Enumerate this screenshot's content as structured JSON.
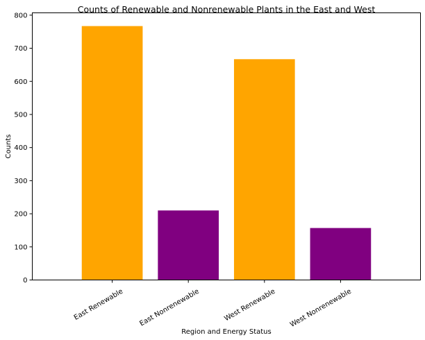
{
  "chart_data": {
    "type": "bar",
    "title": "Counts of Renewable and Nonrenewable Plants in the East and West",
    "xlabel": "Region and Energy Status",
    "ylabel": "Counts",
    "categories": [
      "East Renewable",
      "East Nonrenewable",
      "West Renewable",
      "West Nonrenewable"
    ],
    "values": [
      767,
      210,
      667,
      157
    ],
    "colors": [
      "#FFA500",
      "#800080",
      "#FFA500",
      "#800080"
    ],
    "ylim": [
      0,
      807
    ],
    "yticks": [
      0,
      100,
      200,
      300,
      400,
      500,
      600,
      700,
      800
    ],
    "grid": false,
    "legend": "none",
    "xtick_rotation": "30 degrees"
  }
}
